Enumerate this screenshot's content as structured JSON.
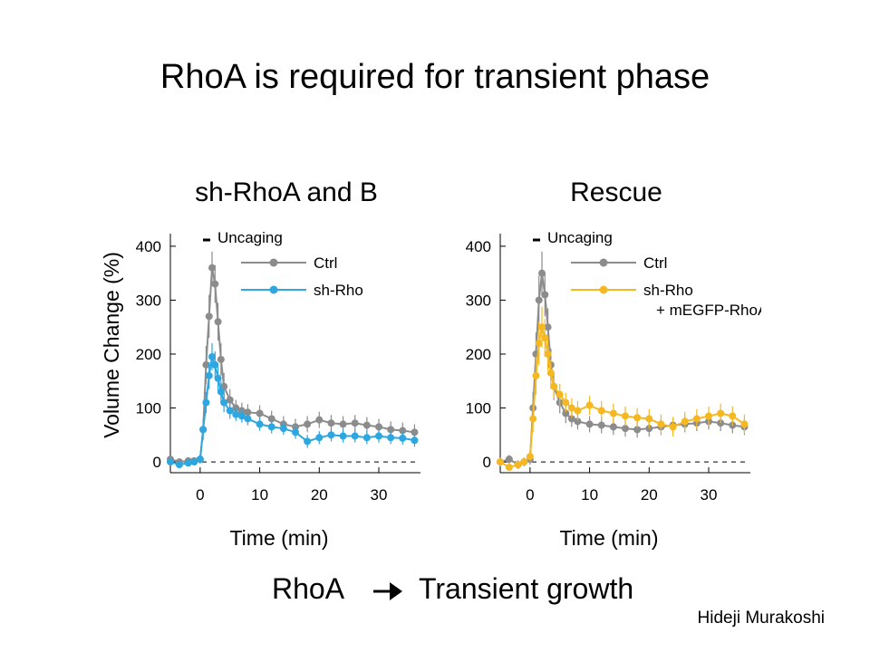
{
  "slide": {
    "title": "RhoA is required for transient phase",
    "conclusion_left": "RhoA",
    "conclusion_right": "Transient growth",
    "arrow_icon": "right-arrow-icon",
    "author": "Hideji Murakoshi"
  },
  "chart_data": [
    {
      "type": "line",
      "title": "sh-RhoA and B",
      "xlabel": "Time (min)",
      "ylabel": "Volume Change (%)",
      "xlim": [
        -5,
        37
      ],
      "ylim": [
        -20,
        420
      ],
      "xticks": [
        0,
        10,
        20,
        30
      ],
      "yticks": [
        0,
        100,
        200,
        300,
        400
      ],
      "annotation": "Uncaging",
      "baseline": 0,
      "legend": "top-right",
      "series": [
        {
          "name": "Ctrl",
          "color": "#8c8c8c",
          "x": [
            -5,
            -3.5,
            -2,
            -1,
            0,
            0.5,
            1,
            1.5,
            2,
            2.5,
            3,
            3.5,
            4,
            5,
            6,
            7,
            8,
            10,
            12,
            14,
            16,
            18,
            20,
            22,
            24,
            26,
            28,
            30,
            32,
            34,
            36
          ],
          "y": [
            5,
            0,
            2,
            2,
            5,
            60,
            180,
            270,
            360,
            330,
            260,
            190,
            140,
            115,
            100,
            95,
            92,
            90,
            80,
            70,
            65,
            70,
            78,
            72,
            70,
            72,
            68,
            65,
            60,
            58,
            55
          ],
          "err": [
            5,
            5,
            5,
            5,
            8,
            20,
            35,
            40,
            30,
            35,
            35,
            30,
            25,
            20,
            15,
            15,
            15,
            15,
            15,
            15,
            15,
            15,
            15,
            15,
            15,
            15,
            15,
            15,
            15,
            15,
            15
          ]
        },
        {
          "name": "sh-Rho",
          "color": "#2ea6e0",
          "x": [
            -5,
            -3.5,
            -2,
            -1,
            0,
            0.5,
            1,
            1.5,
            2,
            2.5,
            3,
            3.5,
            4,
            5,
            6,
            7,
            8,
            10,
            12,
            14,
            16,
            18,
            20,
            22,
            24,
            26,
            28,
            30,
            32,
            34,
            36
          ],
          "y": [
            0,
            -5,
            -2,
            0,
            5,
            60,
            110,
            160,
            195,
            180,
            155,
            130,
            110,
            95,
            88,
            85,
            80,
            70,
            65,
            62,
            55,
            38,
            45,
            50,
            48,
            48,
            45,
            48,
            45,
            44,
            40
          ],
          "err": [
            5,
            5,
            5,
            5,
            8,
            15,
            20,
            25,
            25,
            25,
            22,
            20,
            18,
            15,
            12,
            12,
            12,
            12,
            12,
            12,
            12,
            12,
            12,
            12,
            12,
            12,
            12,
            12,
            12,
            12,
            12
          ]
        }
      ]
    },
    {
      "type": "line",
      "title": "Rescue",
      "xlabel": "Time (min)",
      "ylabel": "",
      "xlim": [
        -5,
        37
      ],
      "ylim": [
        -20,
        420
      ],
      "xticks": [
        0,
        10,
        20,
        30
      ],
      "yticks": [
        0,
        100,
        200,
        300,
        400
      ],
      "annotation": "Uncaging",
      "baseline": 0,
      "legend": "top-right",
      "series": [
        {
          "name": "Ctrl",
          "color": "#8c8c8c",
          "x": [
            -5,
            -3.5,
            -2,
            -1,
            0,
            0.5,
            1,
            1.5,
            2,
            2.5,
            3,
            3.5,
            4,
            5,
            6,
            7,
            8,
            10,
            12,
            14,
            16,
            18,
            20,
            22,
            24,
            26,
            28,
            30,
            32,
            34,
            36
          ],
          "y": [
            0,
            5,
            -5,
            0,
            5,
            100,
            200,
            300,
            350,
            310,
            250,
            180,
            140,
            110,
            90,
            80,
            75,
            70,
            68,
            65,
            62,
            60,
            62,
            65,
            68,
            70,
            72,
            75,
            72,
            68,
            65
          ],
          "err": [
            8,
            8,
            8,
            8,
            10,
            30,
            40,
            45,
            40,
            40,
            35,
            30,
            25,
            20,
            18,
            15,
            15,
            15,
            15,
            15,
            15,
            15,
            15,
            15,
            15,
            15,
            15,
            15,
            15,
            15,
            15
          ]
        },
        {
          "name": "sh-Rho + mEGFP-RhoA",
          "color": "#f5b820",
          "x": [
            -5,
            -3.5,
            -2,
            -1,
            0,
            0.5,
            1,
            1.5,
            2,
            2.5,
            3,
            3.5,
            4,
            5,
            6,
            7,
            8,
            10,
            12,
            14,
            16,
            18,
            20,
            22,
            24,
            26,
            28,
            30,
            32,
            34,
            36
          ],
          "y": [
            0,
            -10,
            -5,
            0,
            10,
            80,
            160,
            220,
            250,
            230,
            200,
            165,
            140,
            125,
            110,
            100,
            95,
            105,
            95,
            90,
            85,
            82,
            80,
            70,
            65,
            75,
            80,
            85,
            90,
            85,
            70
          ],
          "err": [
            6,
            6,
            6,
            6,
            10,
            25,
            35,
            40,
            38,
            35,
            30,
            25,
            22,
            20,
            18,
            18,
            18,
            18,
            18,
            18,
            18,
            18,
            18,
            18,
            18,
            18,
            18,
            18,
            18,
            18,
            18
          ]
        }
      ]
    }
  ]
}
